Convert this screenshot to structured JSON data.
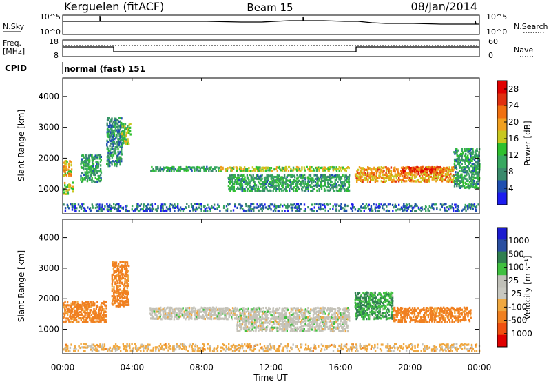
{
  "header": {
    "station": "Kerguelen (fitACF)",
    "beam": "Beam 15",
    "date": "08/Jan/2014"
  },
  "panels": {
    "noise": {
      "left_label": "N.Sky",
      "right_label": "N.Search",
      "left_ticks": [
        "10^5",
        "10^0"
      ],
      "right_ticks": [
        "10^5",
        "10^0"
      ]
    },
    "freq": {
      "left_label_1": "Freq.",
      "left_label_2": "[MHz]",
      "right_label": "Nave",
      "left_ticks": [
        "18",
        "8"
      ],
      "right_ticks": [
        "60",
        "0"
      ]
    },
    "cpid": {
      "label": "CPID",
      "value": "normal (fast) 151"
    }
  },
  "colors": {
    "power": [
      "#1c1cf0",
      "#1f4fb0",
      "#3a8a6c",
      "#38a860",
      "#2ec02e",
      "#c8c820",
      "#f0a020",
      "#f07010",
      "#e03010",
      "#e00000"
    ],
    "velocity": [
      "#e00000",
      "#f05010",
      "#f08020",
      "#f0a840",
      "#c8c8c0",
      "#c0c0b8",
      "#40c040",
      "#308050",
      "#2a4fa0",
      "#1c1cd0"
    ],
    "gray": "#c4c2b8"
  },
  "chart_data": [
    {
      "type": "heatmap",
      "name": "power",
      "ylabel": "Slant Range [km]",
      "xlabel": "",
      "xlim": [
        "00:00",
        "24:00"
      ],
      "ylim": [
        200,
        4600
      ],
      "yticks": [
        "1000",
        "2000",
        "3000",
        "4000"
      ],
      "colorbar": {
        "label": "Power [dB]",
        "ticks": [
          "4",
          "8",
          "12",
          "16",
          "20",
          "24",
          "28"
        ],
        "range": [
          0,
          30
        ]
      },
      "echo_regions": [
        {
          "t": [
            0.0,
            0.5
          ],
          "r": [
            1400,
            1900
          ],
          "level": 18
        },
        {
          "t": [
            0.0,
            0.6
          ],
          "r": [
            800,
            1200
          ],
          "level": 16
        },
        {
          "t": [
            1.0,
            2.2
          ],
          "r": [
            1200,
            2100
          ],
          "level": 10
        },
        {
          "t": [
            2.5,
            3.4
          ],
          "r": [
            1700,
            3300
          ],
          "level": 8
        },
        {
          "t": [
            3.3,
            3.9
          ],
          "r": [
            2400,
            3100
          ],
          "level": 14
        },
        {
          "t": [
            5.0,
            9.0
          ],
          "r": [
            1550,
            1700
          ],
          "level": 10
        },
        {
          "t": [
            9.0,
            16.5
          ],
          "r": [
            1550,
            1700
          ],
          "level": 16
        },
        {
          "t": [
            9.5,
            16.5
          ],
          "r": [
            900,
            1450
          ],
          "level": 10
        },
        {
          "t": [
            16.8,
            22.5
          ],
          "r": [
            1200,
            1700
          ],
          "level": 20
        },
        {
          "t": [
            19.5,
            22.0
          ],
          "r": [
            1500,
            1700
          ],
          "level": 24
        },
        {
          "t": [
            22.5,
            24.0
          ],
          "r": [
            1000,
            2300
          ],
          "level": 10
        },
        {
          "t": [
            0.0,
            24.0
          ],
          "r": [
            250,
            500
          ],
          "level": 6
        }
      ]
    },
    {
      "type": "heatmap",
      "name": "velocity",
      "ylabel": "Slant Range [km]",
      "xlabel": "Time UT",
      "xlim": [
        "00:00",
        "24:00"
      ],
      "ylim": [
        200,
        4600
      ],
      "xticks": [
        "00:00",
        "04:00",
        "08:00",
        "12:00",
        "16:00",
        "20:00",
        "00:00"
      ],
      "yticks": [
        "1000",
        "2000",
        "3000",
        "4000"
      ],
      "colorbar": {
        "label": "Velocity [m s⁻¹]",
        "ticks": [
          "1000",
          "500",
          "100",
          "25",
          "-25",
          "-100",
          "-500",
          "-1000"
        ]
      },
      "echo_regions": [
        {
          "t": [
            0.0,
            2.5
          ],
          "r": [
            1200,
            1900
          ],
          "velocity": -200
        },
        {
          "t": [
            2.8,
            3.8
          ],
          "r": [
            1700,
            3200
          ],
          "velocity": -200
        },
        {
          "t": [
            5.0,
            16.5
          ],
          "r": [
            1300,
            1700
          ],
          "velocity": 0
        },
        {
          "t": [
            10.0,
            16.5
          ],
          "r": [
            900,
            1400
          ],
          "velocity": 0
        },
        {
          "t": [
            16.8,
            19.0
          ],
          "r": [
            1300,
            2200
          ],
          "velocity": 100
        },
        {
          "t": [
            19.0,
            23.5
          ],
          "r": [
            1200,
            1700
          ],
          "velocity": -200
        },
        {
          "t": [
            0.0,
            24.0
          ],
          "r": [
            250,
            500
          ],
          "velocity": -50
        }
      ]
    }
  ]
}
